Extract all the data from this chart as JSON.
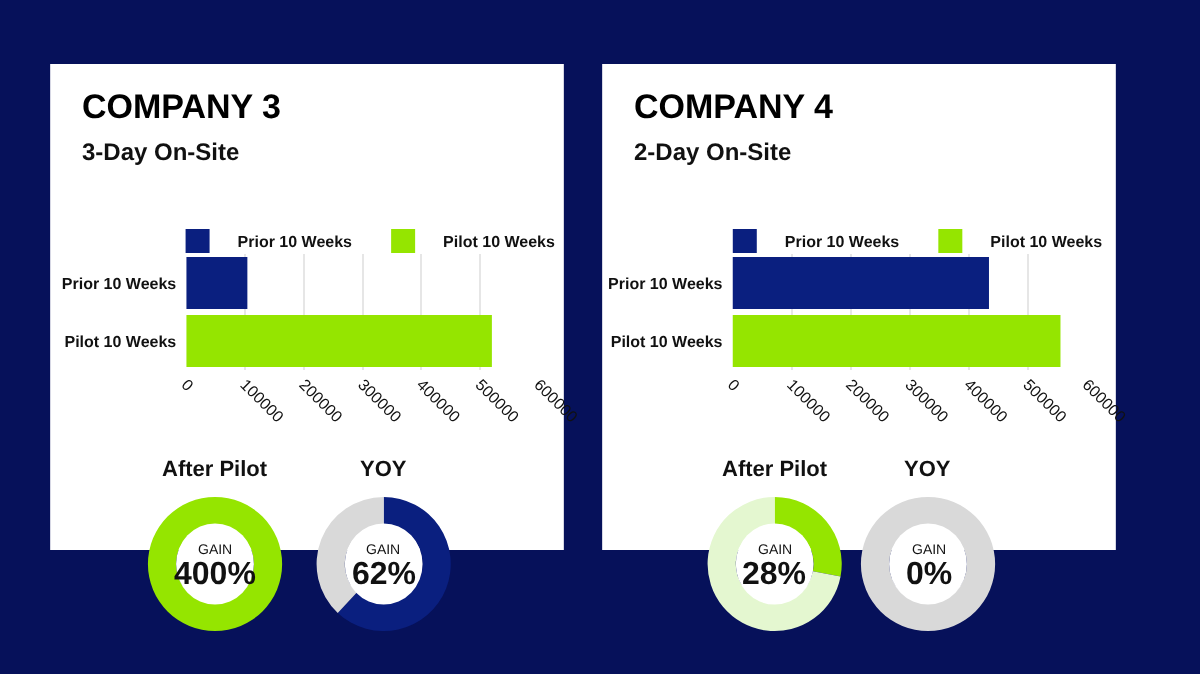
{
  "chart_data": [
    {
      "type": "bar",
      "title": "COMPANY 3",
      "subtitle": "3-Day On-Site",
      "orientation": "horizontal",
      "categories": [
        "Prior 10 Weeks",
        "Pilot 10 Weeks"
      ],
      "series": [
        {
          "name": "Prior 10 Weeks",
          "color": "#0a1f7f",
          "values": [
            104000,
            null
          ]
        },
        {
          "name": "Pilot 10 Weeks",
          "color": "#95e500",
          "values": [
            null,
            520000
          ]
        }
      ],
      "xlim": [
        0,
        600000
      ],
      "xticks": [
        0,
        100000,
        200000,
        300000,
        400000,
        500000,
        600000
      ],
      "grid": "x",
      "legend": "top"
    },
    {
      "type": "donut",
      "title": "After Pilot",
      "categories": [
        null,
        null
      ],
      "values": [
        100,
        0
      ],
      "colors": [
        "#95e500",
        "#e4f7d0"
      ],
      "annotations": [
        "GAIN",
        "400%"
      ]
    },
    {
      "type": "donut",
      "title": "YOY",
      "categories": [
        null,
        null
      ],
      "values": [
        62,
        38
      ],
      "colors": [
        "#0a1f7f",
        "#d9d9d9"
      ],
      "annotations": [
        "GAIN",
        "62%"
      ]
    },
    {
      "type": "bar",
      "title": "COMPANY 4",
      "subtitle": "2-Day On-Site",
      "orientation": "horizontal",
      "categories": [
        "Prior 10 Weeks",
        "Pilot 10 Weeks"
      ],
      "series": [
        {
          "name": "Prior 10 Weeks",
          "color": "#0a1f7f",
          "values": [
            434000,
            null
          ]
        },
        {
          "name": "Pilot 10 Weeks",
          "color": "#95e500",
          "values": [
            null,
            555000
          ]
        }
      ],
      "xlim": [
        0,
        600000
      ],
      "xticks": [
        0,
        100000,
        200000,
        300000,
        400000,
        500000,
        600000
      ],
      "grid": "x",
      "legend": "top"
    },
    {
      "type": "donut",
      "title": "After Pilot",
      "categories": [
        null,
        null
      ],
      "values": [
        28,
        72
      ],
      "colors": [
        "#95e500",
        "#e4f7d0"
      ],
      "annotations": [
        "GAIN",
        "28%"
      ]
    },
    {
      "type": "donut",
      "title": "YOY",
      "categories": [
        null,
        null
      ],
      "values": [
        0,
        100
      ],
      "colors": [
        "#0a1f7f",
        "#d9d9d9"
      ],
      "annotations": [
        "GAIN",
        "0%"
      ]
    }
  ]
}
